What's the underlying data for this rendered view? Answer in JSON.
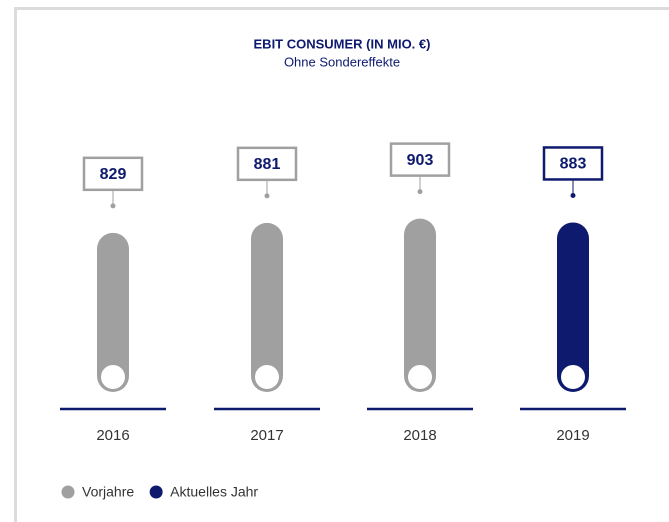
{
  "chart_data": {
    "type": "bar",
    "title": "EBIT CONSUMER (IN MIO. €)",
    "subtitle": "Ohne Sondereffekte",
    "categories": [
      "2016",
      "2017",
      "2018",
      "2019"
    ],
    "values": [
      829,
      881,
      903,
      883
    ],
    "colors": [
      "#a0a0a0",
      "#a0a0a0",
      "#a0a0a0",
      "#0d1a6e"
    ],
    "ylim": [
      0,
      1000
    ],
    "legend": [
      {
        "name": "Vorjahre",
        "color": "#a0a0a0"
      },
      {
        "name": "Aktuelles Jahr",
        "color": "#0d1a6e"
      }
    ]
  }
}
